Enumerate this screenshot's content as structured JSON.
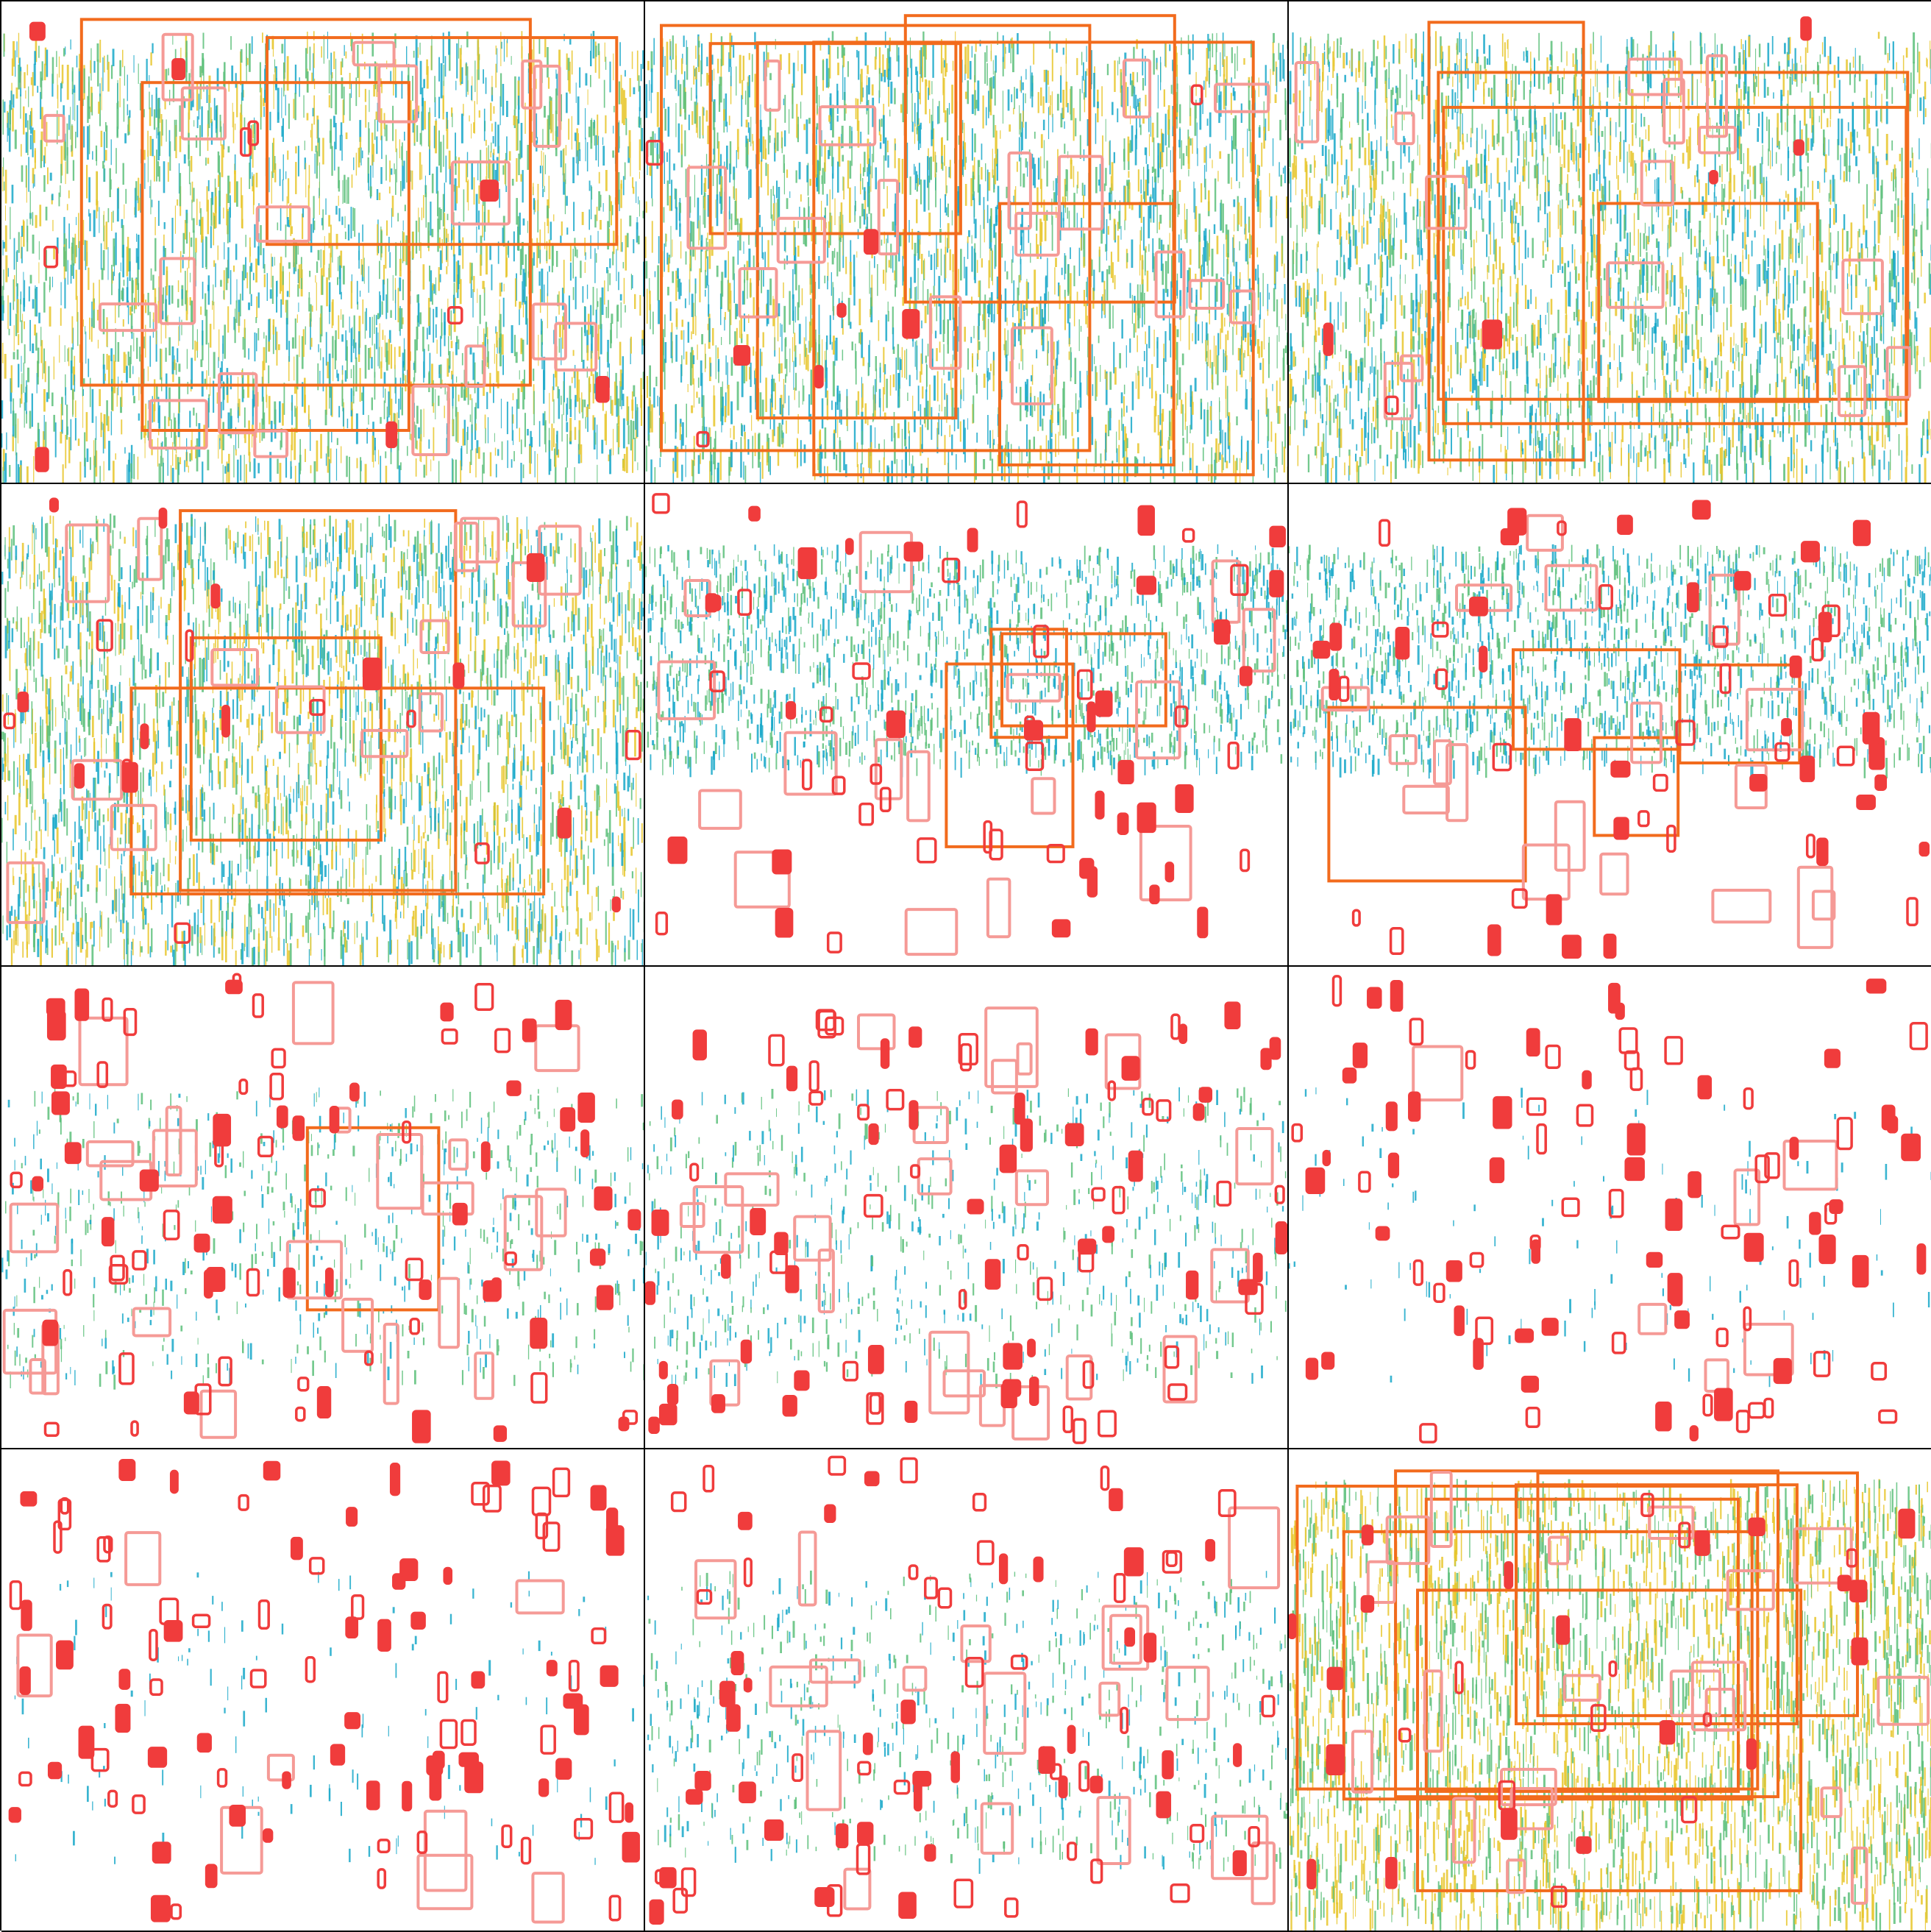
{
  "colors": {
    "background": "#ffffff",
    "grid_line": "#000000",
    "large_box": "#f26b1d",
    "medium_box": "#f59a96",
    "small_box": "#f03c3c",
    "signal_low": "#17a8c9",
    "signal_mid": "#5cbf7a",
    "signal_high": "#e8c62a"
  },
  "icons": [
    "spectrogram-panel",
    "detection-box"
  ],
  "panels": [
    {
      "signal": "dense-yellow",
      "large": 3,
      "medium": 18,
      "small": 10
    },
    {
      "signal": "dense-blue",
      "large": 6,
      "medium": 16,
      "small": 8
    },
    {
      "signal": "dense-mixed",
      "large": 4,
      "medium": 14,
      "small": 6
    },
    {
      "signal": "dense-yellow",
      "large": 3,
      "medium": 14,
      "small": 22
    },
    {
      "signal": "band-blue",
      "large": 3,
      "medium": 16,
      "small": 60
    },
    {
      "signal": "band-blue",
      "large": 4,
      "medium": 18,
      "small": 55
    },
    {
      "signal": "scattered-blue",
      "large": 1,
      "medium": 24,
      "small": 80
    },
    {
      "signal": "scattered-green",
      "large": 0,
      "medium": 22,
      "small": 85
    },
    {
      "signal": "sparse",
      "large": 0,
      "medium": 6,
      "small": 90
    },
    {
      "signal": "sparse",
      "large": 0,
      "medium": 8,
      "small": 95
    },
    {
      "signal": "scattered-green",
      "large": 0,
      "medium": 18,
      "small": 75
    },
    {
      "signal": "dense-yellow-green",
      "large": 7,
      "medium": 20,
      "small": 30
    }
  ]
}
